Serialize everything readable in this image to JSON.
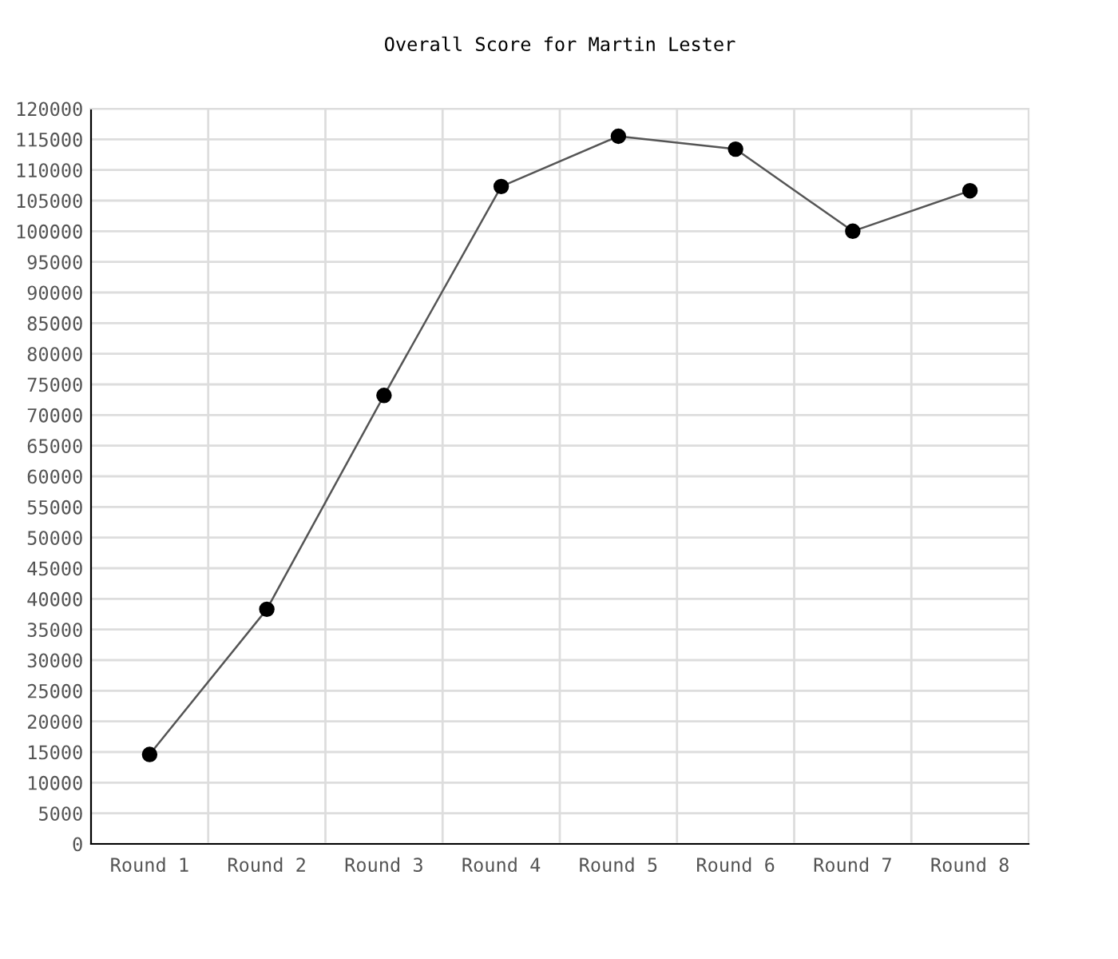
{
  "chart_data": {
    "type": "line",
    "title": "Overall Score for Martin Lester",
    "categories": [
      "Round 1",
      "Round 2",
      "Round 3",
      "Round 4",
      "Round 5",
      "Round 6",
      "Round 7",
      "Round 8"
    ],
    "series": [
      {
        "color": "#000000",
        "values": [
          14600,
          38300,
          73200,
          107300,
          115500,
          113400,
          100000,
          106600
        ]
      }
    ],
    "ylim": [
      0,
      120000
    ],
    "yticks": [
      0,
      5000,
      10000,
      15000,
      20000,
      25000,
      30000,
      35000,
      40000,
      45000,
      50000,
      55000,
      60000,
      65000,
      70000,
      75000,
      80000,
      85000,
      90000,
      95000,
      100000,
      105000,
      110000,
      115000,
      120000
    ],
    "grid": true,
    "marker": "circle",
    "line_style": "solid",
    "legend": false
  }
}
